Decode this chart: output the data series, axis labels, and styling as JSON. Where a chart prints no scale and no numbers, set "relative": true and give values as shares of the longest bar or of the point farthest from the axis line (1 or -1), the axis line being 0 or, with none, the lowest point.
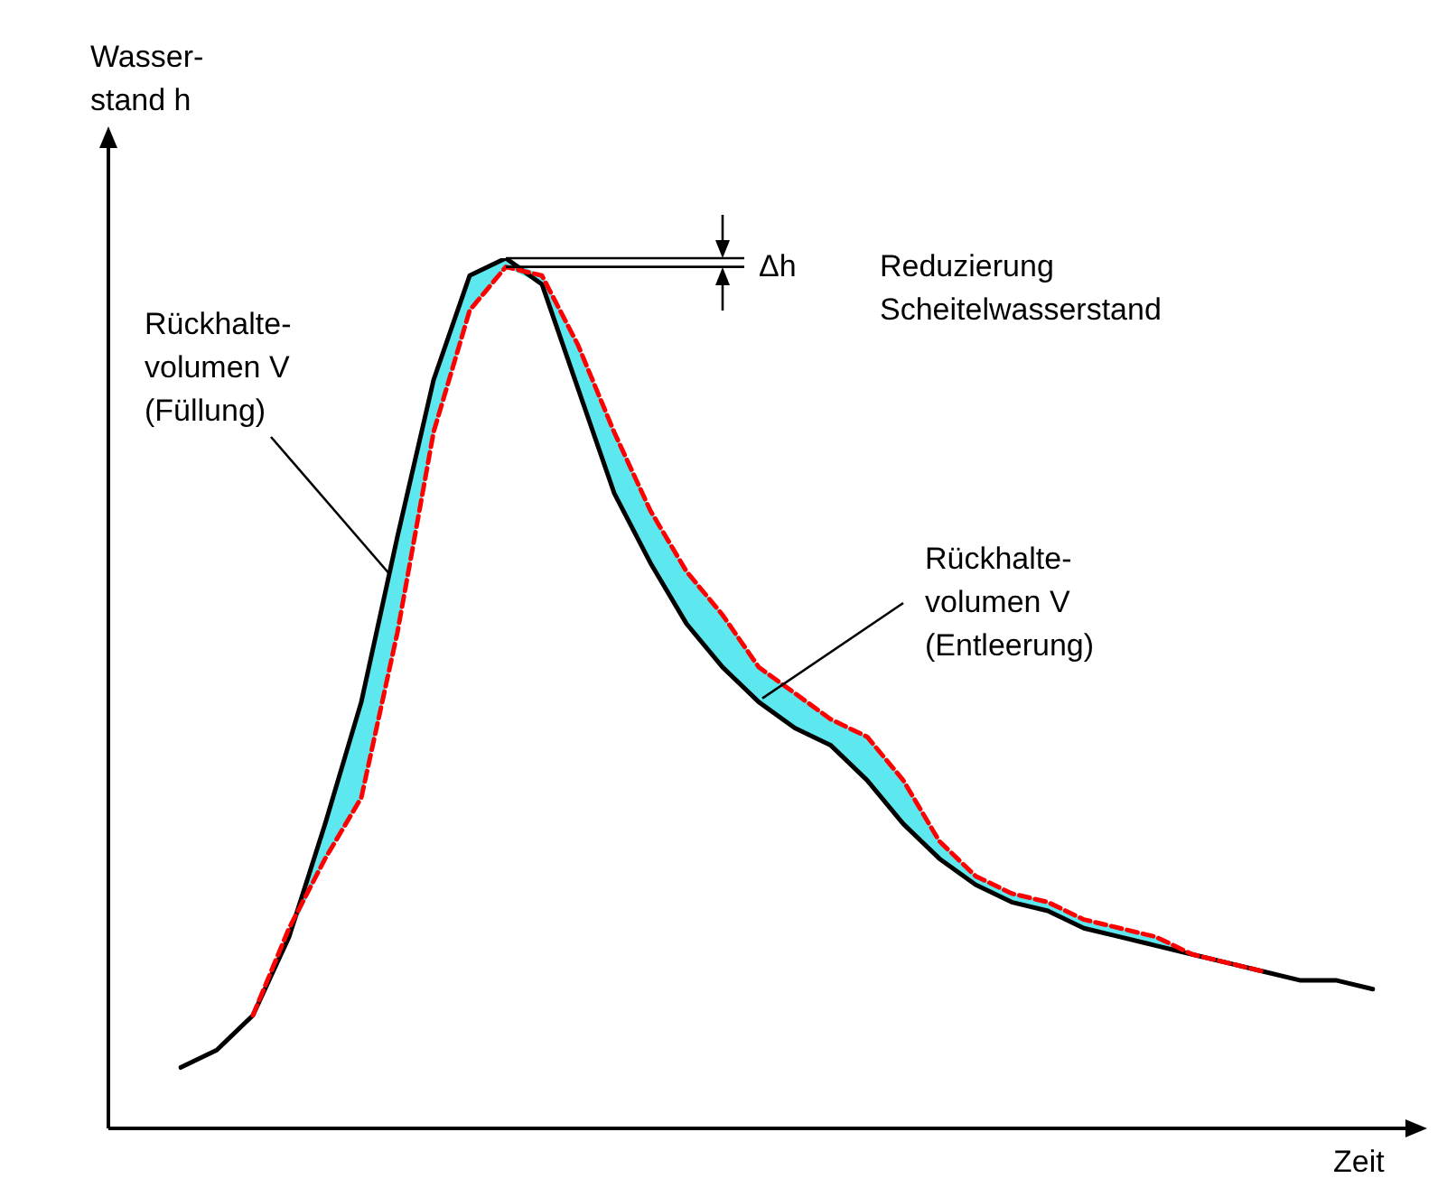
{
  "chart_data": {
    "type": "line",
    "relative": true,
    "tick_labels": false,
    "xlabel": "Zeit",
    "ylabel": "Wasser-\nstand h",
    "grid": false,
    "legend": false,
    "marker": "none",
    "categories": [
      null,
      null,
      null,
      null,
      null,
      null,
      null,
      null,
      null,
      null,
      null,
      null,
      null,
      null,
      null,
      null,
      null,
      null,
      null,
      null,
      null,
      null,
      null,
      null,
      null,
      null,
      null,
      null,
      null,
      null,
      null,
      null,
      null,
      null
    ],
    "annotations": [
      "Rückhalte-\nvolumen V\n(Füllung)",
      "Rückhalte-\nvolumen V\n(Entleerung)",
      "Δh",
      "Reduzierung\nScheitelwasserstand"
    ],
    "series": [
      {
        "color": "#000000",
        "values": [
          0.07,
          0.09,
          0.13,
          0.22,
          0.35,
          0.49,
          0.68,
          0.86,
          0.98,
          1,
          0.97,
          0.85,
          0.73,
          0.65,
          0.58,
          0.53,
          0.49,
          0.46,
          0.44,
          0.4,
          0.35,
          0.31,
          0.28,
          0.26,
          0.25,
          0.23,
          0.22,
          0.21,
          0.2,
          0.19,
          0.18,
          0.17,
          0.17,
          0.16
        ]
      },
      {
        "color": "#ff0000",
        "line_style": "dashed",
        "values": [
          null,
          null,
          0.13,
          0.23,
          0.31,
          0.38,
          0.57,
          0.8,
          0.94,
          0.99,
          0.98,
          0.9,
          0.8,
          0.71,
          0.64,
          0.59,
          0.53,
          0.5,
          0.47,
          0.45,
          0.4,
          0.33,
          0.29,
          0.27,
          0.26,
          0.24,
          0.23,
          0.22,
          0.2,
          0.19,
          0.18,
          null,
          null,
          null
        ],
        "lower": [
          null,
          null,
          0.13,
          0.22,
          0.31,
          0.38,
          0.57,
          0.8,
          0.94,
          0.99,
          0.97,
          0.85,
          0.73,
          0.65,
          0.58,
          0.53,
          0.49,
          0.46,
          0.44,
          0.4,
          0.35,
          0.31,
          0.28,
          0.26,
          0.25,
          0.23,
          0.22,
          0.21,
          0.2,
          0.19,
          0.18,
          null,
          null,
          null
        ],
        "upper": [
          null,
          null,
          0.13,
          0.23,
          0.35,
          0.49,
          0.68,
          0.86,
          0.98,
          1,
          0.98,
          0.9,
          0.8,
          0.71,
          0.64,
          0.59,
          0.53,
          0.5,
          0.47,
          0.45,
          0.4,
          0.33,
          0.29,
          0.27,
          0.26,
          0.24,
          0.23,
          0.22,
          0.2,
          0.19,
          0.18,
          null,
          null,
          null
        ]
      }
    ]
  }
}
